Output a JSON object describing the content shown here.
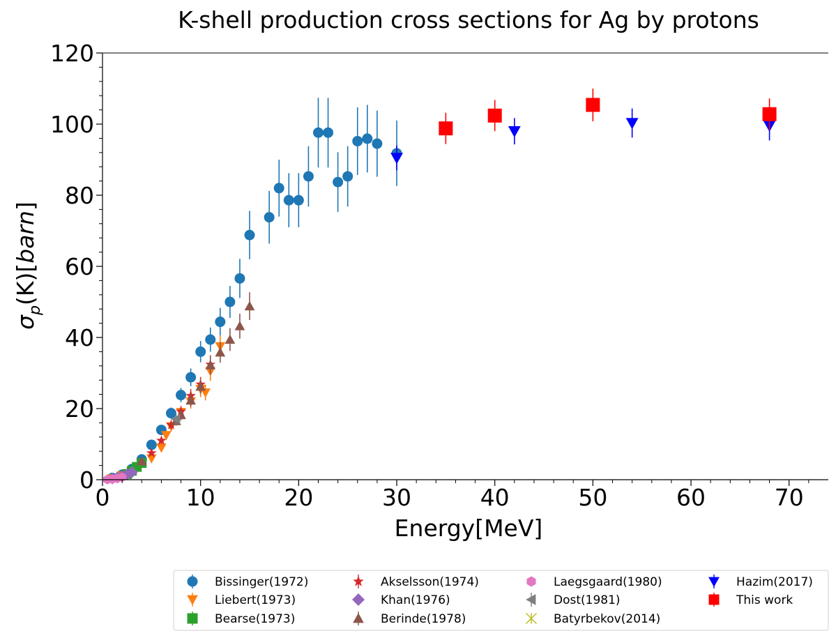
{
  "chart_data": {
    "type": "scatter",
    "title": "K-shell production cross sections for Ag by protons",
    "xlabel": "Energy[MeV]",
    "ylabel": "σp(K)[barn]",
    "xlim": [
      0,
      74
    ],
    "ylim": [
      0,
      120
    ],
    "xticks": [
      0,
      10,
      20,
      30,
      40,
      50,
      60,
      70
    ],
    "yticks": [
      0,
      20,
      40,
      60,
      80,
      100,
      120
    ],
    "grid": false,
    "legend_position": "bottom",
    "series": [
      {
        "name": "Bissinger(1972)",
        "marker": "circle",
        "color": "#1f77b4",
        "x": [
          1,
          2,
          3,
          4,
          5,
          6,
          7,
          8,
          9,
          10,
          11,
          12,
          13,
          14,
          15,
          17,
          18,
          19,
          20,
          21,
          22,
          23,
          24,
          25,
          26,
          27,
          28,
          30
        ],
        "y": [
          0.5,
          1.4,
          3.0,
          5.7,
          9.8,
          14,
          18.7,
          23.8,
          28.8,
          36,
          39.4,
          44.4,
          50,
          56.6,
          68.8,
          73.8,
          82,
          78.6,
          78.6,
          85.3,
          97.6,
          97.6,
          83.7,
          85.3,
          95.2,
          95.9,
          94.5,
          91.8
        ],
        "err": [
          0.2,
          0.3,
          0.4,
          0.6,
          0.9,
          1.2,
          1.6,
          2,
          2.5,
          3,
          3.4,
          3.9,
          4.5,
          5.5,
          6.8,
          7.4,
          8,
          7.6,
          7.6,
          8.5,
          9.8,
          9.8,
          8.4,
          8.5,
          9.5,
          9.5,
          9.3,
          9.2
        ]
      },
      {
        "name": "Liebert(1973)",
        "marker": "triangle-down",
        "color": "#ff7f0e",
        "x": [
          1,
          2,
          3,
          4,
          5,
          6,
          6.5,
          7,
          8,
          9,
          10,
          10.5,
          11,
          12
        ],
        "y": [
          0.4,
          1.2,
          2.6,
          4.6,
          6.0,
          9.0,
          12.5,
          15,
          19,
          22,
          25.5,
          24.5,
          30.5,
          37.5
        ],
        "err": [
          0.1,
          0.2,
          0.3,
          0.5,
          0.6,
          0.9,
          1.2,
          1.4,
          1.7,
          2,
          2.3,
          2.2,
          2.7,
          3.1
        ]
      },
      {
        "name": "Bearse(1973)",
        "marker": "square",
        "color": "#2ca02c",
        "x": [
          2.5,
          3,
          3.5,
          4
        ],
        "y": [
          1.6,
          2.5,
          3.6,
          4.7
        ],
        "err": [
          0.1,
          0.2,
          0.3,
          0.3
        ]
      },
      {
        "name": "Akselsson(1974)",
        "marker": "star",
        "color": "#d62728",
        "x": [
          5,
          6,
          7,
          8,
          9,
          10,
          11
        ],
        "y": [
          7.5,
          11,
          15.4,
          19.2,
          23.6,
          26.8,
          32.4
        ],
        "err": [
          0.6,
          0.9,
          1.2,
          1.5,
          1.9,
          2.1,
          2.6
        ]
      },
      {
        "name": "Khan(1976)",
        "marker": "diamond",
        "color": "#9467bd",
        "x": [
          1,
          1.5,
          2,
          2.5,
          3
        ],
        "y": [
          0.3,
          0.6,
          1.0,
          1.5,
          2.1
        ],
        "err": [
          0,
          0,
          0,
          0,
          0
        ]
      },
      {
        "name": "Berinde(1978)",
        "marker": "triangle-up",
        "color": "#8c564b",
        "x": [
          4,
          7.5,
          8,
          9,
          10,
          11,
          12,
          13,
          14,
          15
        ],
        "y": [
          5.2,
          16.5,
          18.2,
          22.3,
          26.2,
          32.2,
          35.8,
          39.4,
          43.2,
          48.8
        ],
        "err": [
          0.5,
          1.3,
          1.5,
          1.8,
          2.1,
          2.6,
          2.9,
          3.2,
          3.5,
          3.9
        ]
      },
      {
        "name": "Laegsgaard(1980)",
        "marker": "hexagon",
        "color": "#e377c2",
        "x": [
          0.5,
          1,
          1.5,
          2
        ],
        "y": [
          0.05,
          0.15,
          0.35,
          0.7
        ],
        "err": [
          0,
          0,
          0,
          0
        ]
      },
      {
        "name": "Dost(1981)",
        "marker": "triangle-left",
        "color": "#7f7f7f",
        "x": [
          7.5
        ],
        "y": [
          17
        ],
        "err": [
          1.4
        ]
      },
      {
        "name": "Batyrbekov(2014)",
        "marker": "x",
        "color": "#bcbd22",
        "x": [],
        "y": [],
        "err": []
      },
      {
        "name": "Hazim(2017)",
        "marker": "triangle-down",
        "color": "#0000ff",
        "x": [
          30,
          42,
          54,
          68
        ],
        "y": [
          90.5,
          98,
          100.3,
          99.6
        ],
        "err": [
          3.5,
          3.7,
          4.1,
          4.2
        ]
      },
      {
        "name": "This work",
        "marker": "square",
        "color": "#ff0000",
        "x": [
          35,
          40,
          50,
          68
        ],
        "y": [
          98.8,
          102.4,
          105.4,
          102.8
        ],
        "err": [
          4.4,
          4.4,
          4.6,
          4.4
        ]
      }
    ]
  }
}
